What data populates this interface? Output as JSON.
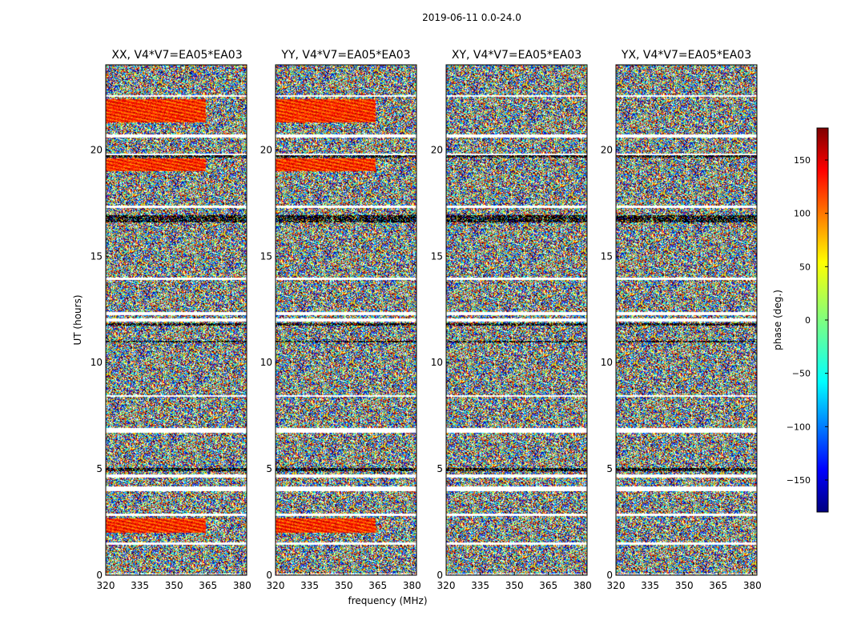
{
  "chart_data": {
    "type": "heatmap",
    "suptitle": "2019-06-11 0.0-24.0",
    "xlabel": "frequency (MHz)",
    "ylabel": "UT (hours)",
    "xlim": [
      320,
      382
    ],
    "ylim": [
      0,
      24
    ],
    "xticks": [
      320,
      335,
      350,
      365,
      380
    ],
    "yticks": [
      0,
      5,
      10,
      15,
      20
    ],
    "panels": [
      {
        "title": "XX, V4*V7=EA05*EA03",
        "pol": "XX"
      },
      {
        "title": "YY, V4*V7=EA05*EA03",
        "pol": "YY"
      },
      {
        "title": "XY, V4*V7=EA05*EA03",
        "pol": "XY"
      },
      {
        "title": "YX, V4*V7=EA05*EA03",
        "pol": "YX"
      }
    ],
    "colorbar": {
      "label": "phase (deg.)",
      "range": [
        -180,
        180
      ],
      "ticks": [
        150,
        100,
        50,
        0,
        -50,
        -100,
        -150
      ],
      "colormap": "jet"
    },
    "flagged_gaps_ut": [
      [
        0.06,
        0.1
      ],
      [
        1.45,
        1.55
      ],
      [
        2.8,
        2.9
      ],
      [
        3.95,
        4.2
      ],
      [
        4.6,
        4.75
      ],
      [
        6.7,
        6.95
      ],
      [
        8.4,
        8.5
      ],
      [
        11.95,
        12.1
      ],
      [
        12.25,
        12.4
      ],
      [
        13.9,
        14.0
      ],
      [
        17.3,
        17.4
      ],
      [
        19.75,
        19.85
      ],
      [
        20.6,
        20.75
      ],
      [
        22.5,
        22.6
      ]
    ],
    "dark_bands_ut": [
      [
        4.9,
        5.05
      ],
      [
        10.95,
        11.05
      ],
      [
        11.75,
        11.85
      ],
      [
        16.6,
        16.95
      ],
      [
        19.65,
        19.75
      ]
    ],
    "coherent_phase_bands": [
      {
        "pols": [
          "XX",
          "YY"
        ],
        "ut": [
          2.0,
          2.7
        ],
        "freq": [
          320,
          364
        ],
        "phase_deg": 120
      },
      {
        "pols": [
          "XX",
          "YY"
        ],
        "ut": [
          21.3,
          22.4
        ],
        "freq": [
          320,
          364
        ],
        "phase_deg": 120
      },
      {
        "pols": [
          "XX",
          "YY"
        ],
        "ut": [
          19.0,
          19.6
        ],
        "freq": [
          320,
          364
        ],
        "phase_deg": 120
      }
    ]
  }
}
